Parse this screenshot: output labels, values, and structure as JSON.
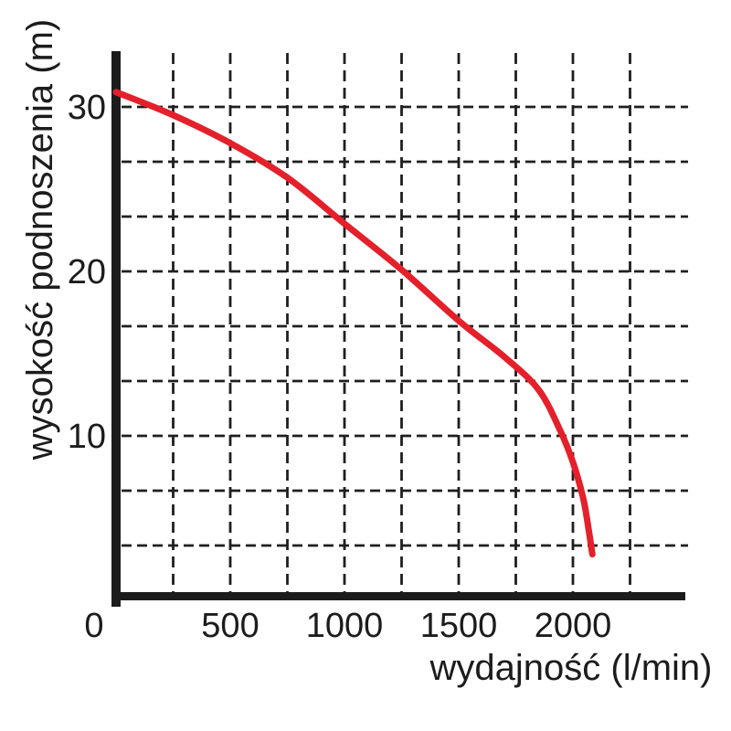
{
  "chart_data": {
    "type": "line",
    "title": "",
    "xlabel": "wydajność (l/min)",
    "ylabel": "wysokość podnoszenia (m)",
    "xlim": [
      0,
      2500
    ],
    "ylim": [
      0,
      33.333
    ],
    "x_grid_step": 250,
    "y_grid_step": 3.3333,
    "grid": "dashed",
    "legend": "none",
    "x_ticks": {
      "values": [
        0,
        500,
        1000,
        1500,
        2000
      ],
      "labels": [
        "0",
        "500",
        "1000",
        "1500",
        "2000"
      ]
    },
    "y_ticks": {
      "values": [
        10,
        20,
        30
      ],
      "labels": [
        "10",
        "20",
        "30"
      ]
    },
    "series": [
      {
        "name": "pump-head-curve",
        "color": "#e4202a",
        "points": [
          [
            0,
            30.9
          ],
          [
            250,
            29.5
          ],
          [
            500,
            27.8
          ],
          [
            750,
            25.7
          ],
          [
            1000,
            22.9
          ],
          [
            1250,
            20.1
          ],
          [
            1500,
            17.0
          ],
          [
            1700,
            14.8
          ],
          [
            1850,
            12.8
          ],
          [
            1945,
            10.3
          ],
          [
            2000,
            8.4
          ],
          [
            2045,
            6.2
          ],
          [
            2070,
            4.2
          ],
          [
            2085,
            2.8
          ]
        ]
      }
    ]
  },
  "style": {
    "background": "#ffffff",
    "axis_color": "#1c1c1c",
    "grid_color": "#1f1f1f",
    "text_color": "#1c1c1c",
    "curve_color": "#e4202a"
  }
}
